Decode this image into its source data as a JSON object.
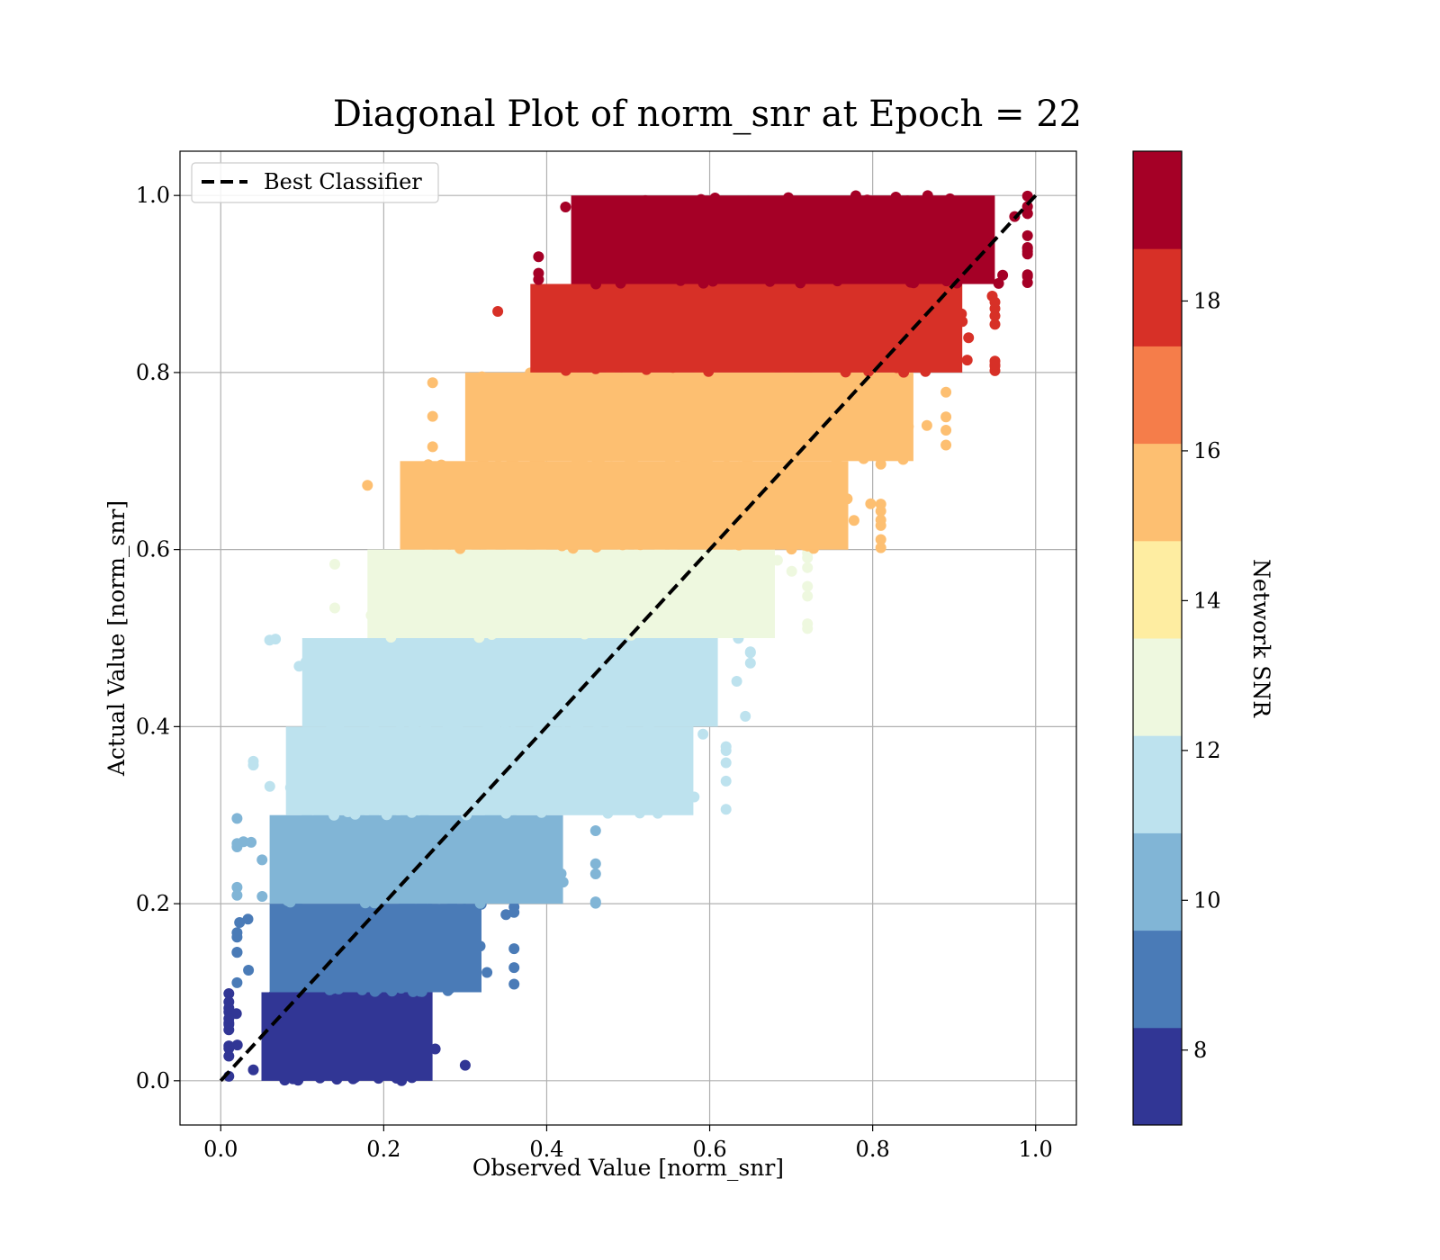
{
  "chart_data": {
    "type": "scatter",
    "title": "Diagonal Plot of norm_snr at Epoch = 22",
    "xlabel": "Observed Value [norm_snr]",
    "ylabel": "Actual Value [norm_snr]",
    "xlim": [
      -0.05,
      1.05
    ],
    "ylim": [
      -0.05,
      1.05
    ],
    "xticks": [
      "0.0",
      "0.2",
      "0.4",
      "0.6",
      "0.8",
      "1.0"
    ],
    "yticks": [
      "0.0",
      "0.2",
      "0.4",
      "0.6",
      "0.8",
      "1.0"
    ],
    "grid": true,
    "legend": {
      "placement": "top-left",
      "entries": [
        "Best Classifier"
      ]
    },
    "reference_line": {
      "name": "Best Classifier",
      "x": [
        0.0,
        1.0
      ],
      "y": [
        0.0,
        1.0
      ],
      "style": "dashed",
      "color": "#000000"
    },
    "colorbar": {
      "label": "Network SNR",
      "range": [
        7,
        20
      ],
      "ticks": [
        "8",
        "10",
        "12",
        "14",
        "16",
        "18"
      ],
      "colors": [
        "#313695",
        "#4a7bb7",
        "#81b5d6",
        "#bde2ee",
        "#eef8df",
        "#feeda1",
        "#fdbf71",
        "#f57d4a",
        "#d73027",
        "#a50026"
      ]
    },
    "bands": [
      {
        "actual_range": [
          0.0,
          0.1
        ],
        "snr": 8,
        "observed_center": 0.1,
        "observed_min": 0.01,
        "observed_max": 0.3
      },
      {
        "actual_range": [
          0.1,
          0.2
        ],
        "snr": 9,
        "observed_center": 0.18,
        "observed_min": 0.02,
        "observed_max": 0.36
      },
      {
        "actual_range": [
          0.2,
          0.3
        ],
        "snr": 10,
        "observed_center": 0.26,
        "observed_min": 0.02,
        "observed_max": 0.46
      },
      {
        "actual_range": [
          0.3,
          0.4
        ],
        "snr": 11,
        "observed_center": 0.33,
        "observed_min": 0.04,
        "observed_max": 0.62
      },
      {
        "actual_range": [
          0.4,
          0.5
        ],
        "snr": 12,
        "observed_center": 0.42,
        "observed_min": 0.06,
        "observed_max": 0.65
      },
      {
        "actual_range": [
          0.5,
          0.6
        ],
        "snr": 13,
        "observed_center": 0.5,
        "observed_min": 0.14,
        "observed_max": 0.72
      },
      {
        "actual_range": [
          0.6,
          0.7
        ],
        "snr": 15,
        "observed_center": 0.58,
        "observed_min": 0.18,
        "observed_max": 0.81
      },
      {
        "actual_range": [
          0.7,
          0.8
        ],
        "snr": 16,
        "observed_center": 0.66,
        "observed_min": 0.26,
        "observed_max": 0.89
      },
      {
        "actual_range": [
          0.8,
          0.9
        ],
        "snr": 18,
        "observed_center": 0.74,
        "observed_min": 0.34,
        "observed_max": 0.95
      },
      {
        "actual_range": [
          0.9,
          1.0
        ],
        "snr": 19,
        "observed_center": 0.79,
        "observed_min": 0.39,
        "observed_max": 0.99
      }
    ]
  }
}
